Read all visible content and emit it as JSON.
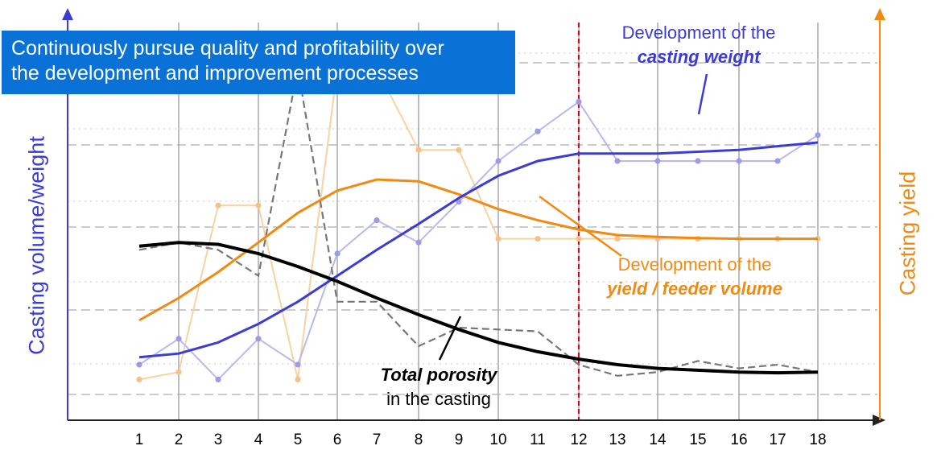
{
  "banner": {
    "line1": "Continuously pursue quality and profitability over",
    "line2": "the development and improvement processes"
  },
  "annotations": {
    "weight": {
      "line1": "Development of the",
      "line2": "casting weight"
    },
    "yield": {
      "line1": "Development of the",
      "line2": "yield / feeder volume"
    },
    "porosity": {
      "line1": "Total porosity",
      "line2": "in the casting"
    }
  },
  "colors": {
    "weight": "#3b3bd6",
    "yield": "#f08a12",
    "porosity": "#000000",
    "porosity_measured": "#777777",
    "marker_line": "#c8102e",
    "banner": "#0a72d6"
  },
  "chart_data": {
    "type": "line",
    "xlabel": "",
    "ylabel": "Casting volume/weight",
    "y2label": "Casting yield",
    "x": [
      1,
      2,
      3,
      4,
      5,
      6,
      7,
      8,
      9,
      10,
      11,
      12,
      13,
      14,
      15,
      16,
      17,
      18
    ],
    "x_tick_labels": [
      "1",
      "2",
      "3",
      "4",
      "5",
      "6",
      "7",
      "8",
      "9",
      "10",
      "11",
      "12",
      "13",
      "14",
      "15",
      "16",
      "17",
      "18"
    ],
    "vertical_marker_x": 12,
    "y_ticks_shown": false,
    "grid": true,
    "series": [
      {
        "name": "casting weight",
        "style": "trend",
        "values": [
          0.17,
          0.18,
          0.21,
          0.26,
          0.32,
          0.39,
          0.46,
          0.53,
          0.6,
          0.66,
          0.7,
          0.72,
          0.72,
          0.72,
          0.725,
          0.73,
          0.74,
          0.75
        ]
      },
      {
        "name": "casting weight",
        "style": "measured",
        "values": [
          0.15,
          0.22,
          0.11,
          0.22,
          0.15,
          0.45,
          0.54,
          0.48,
          0.59,
          0.7,
          0.78,
          0.86,
          0.7,
          0.7,
          0.7,
          0.7,
          0.7,
          0.77
        ]
      },
      {
        "name": "yield / feeder volume",
        "style": "trend",
        "values": [
          0.27,
          0.33,
          0.4,
          0.48,
          0.56,
          0.62,
          0.65,
          0.645,
          0.61,
          0.57,
          0.54,
          0.515,
          0.5,
          0.495,
          0.492,
          0.49,
          0.49,
          0.49
        ]
      },
      {
        "name": "yield / feeder volume",
        "style": "measured",
        "values": [
          0.11,
          0.13,
          0.58,
          0.58,
          0.11,
          0.95,
          0.95,
          0.73,
          0.73,
          0.49,
          0.49,
          0.49,
          0.49,
          0.49,
          0.49,
          0.49,
          0.49,
          0.49
        ]
      },
      {
        "name": "Total porosity",
        "style": "trend",
        "values": [
          0.47,
          0.48,
          0.475,
          0.45,
          0.415,
          0.375,
          0.33,
          0.285,
          0.245,
          0.21,
          0.185,
          0.165,
          0.15,
          0.14,
          0.135,
          0.13,
          0.128,
          0.13
        ]
      },
      {
        "name": "Total porosity",
        "style": "measured",
        "values": [
          0.46,
          0.48,
          0.46,
          0.39,
          0.95,
          0.32,
          0.32,
          0.2,
          0.25,
          0.245,
          0.24,
          0.15,
          0.12,
          0.13,
          0.16,
          0.14,
          0.15,
          0.13
        ]
      }
    ]
  }
}
